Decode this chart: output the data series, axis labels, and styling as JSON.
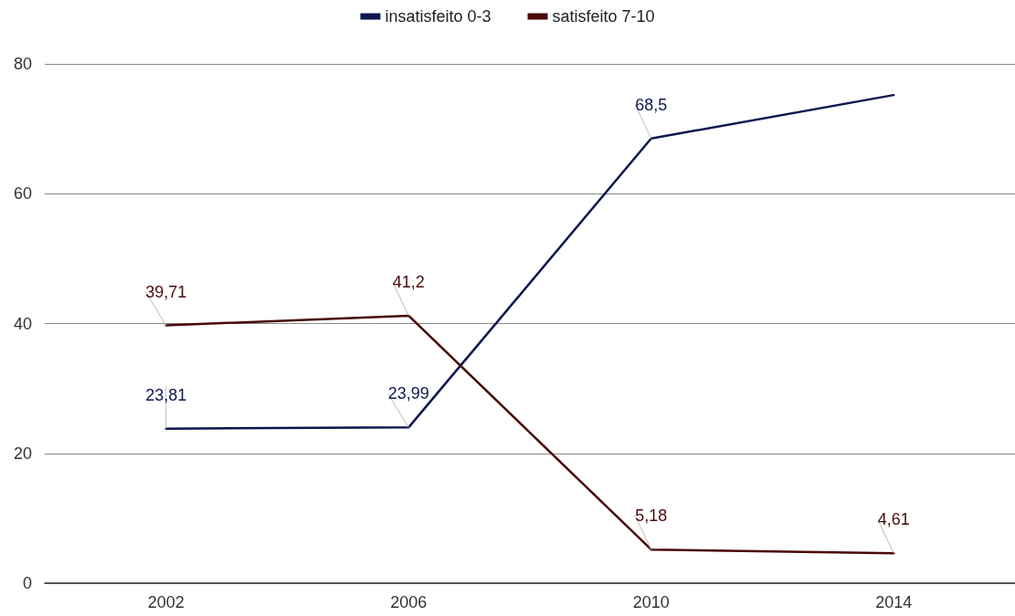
{
  "chart_data": {
    "type": "line",
    "categories": [
      "2002",
      "2006",
      "2010",
      "2014"
    ],
    "series": [
      {
        "name": "insatisfeito 0-3",
        "color": "#0d1650",
        "values": [
          23.81,
          23.99,
          68.5,
          75.2
        ],
        "value_labels": [
          "23,81",
          "23,99",
          "68,5",
          null
        ]
      },
      {
        "name": "satisfeito 7-10",
        "color": "#4a0808",
        "values": [
          39.71,
          41.2,
          5.18,
          4.61
        ],
        "value_labels": [
          "39,71",
          "41,2",
          "5,18",
          "4,61"
        ]
      }
    ],
    "ylim": [
      0,
      80
    ],
    "yticks": [
      0,
      20,
      40,
      60,
      80
    ],
    "grid": "y",
    "legend": "top",
    "marker": "none",
    "line_style": "solid"
  }
}
